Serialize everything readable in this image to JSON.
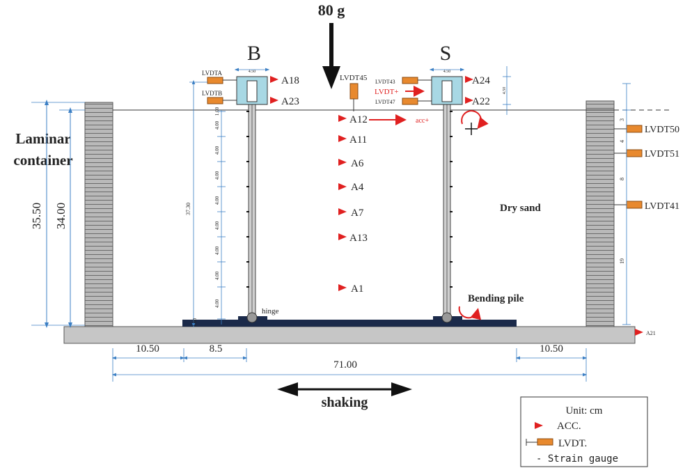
{
  "load_label": "80 g",
  "pile_b_label": "B",
  "pile_s_label": "S",
  "container_label_1": "Laminar",
  "container_label_2": "container",
  "soil_label": "Dry sand",
  "hinge_label": "hinge",
  "bending_pile_label": "Bending pile",
  "shaking_label": "shaking",
  "accelerometers": {
    "a18": "A18",
    "a23": "A23",
    "a24": "A24",
    "a22": "A22",
    "a12": "A12",
    "a11": "A11",
    "a6": "A6",
    "a4": "A4",
    "a7": "A7",
    "a13": "A13",
    "a1": "A1",
    "a21": "A21"
  },
  "lvdts": {
    "lvdta": "LVDTA",
    "lvdtb": "LVDTB",
    "lvdt45": "LVDT45",
    "lvdt43": "LVDT43",
    "lvdt_plus": "LVDT+",
    "lvdt47": "LVDT47",
    "lvdt50": "LVDT50",
    "lvdt51": "LVDT51",
    "lvdt41": "LVDT41"
  },
  "acc_plus_label": "acc+",
  "dimensions": {
    "height_outer": "35.50",
    "height_inner": "34.00",
    "pile_length": "37.30",
    "spacing_top": "1.00",
    "spacing": "4.00",
    "spacing_bottom": "1.00",
    "left_offset": "10.50",
    "pile_offset": "8.5",
    "right_offset": "10.50",
    "total_width": "71.00",
    "cap_width": "4.50",
    "cap_height": "4.50",
    "right_dim_1": "3",
    "right_dim_2": "4",
    "right_dim_3": "8",
    "right_dim_4": "19"
  },
  "legend": {
    "unit": "Unit: cm",
    "acc": "ACC.",
    "lvdt": "LVDT.",
    "strain": "- Strain gauge"
  },
  "colors": {
    "sensor_acc": "#e02020",
    "sensor_lvdt": "#e8892e",
    "pile_cap": "#a8d8e4",
    "base_plate": "#1b2a4a",
    "dimension": "#3b7fc4"
  }
}
